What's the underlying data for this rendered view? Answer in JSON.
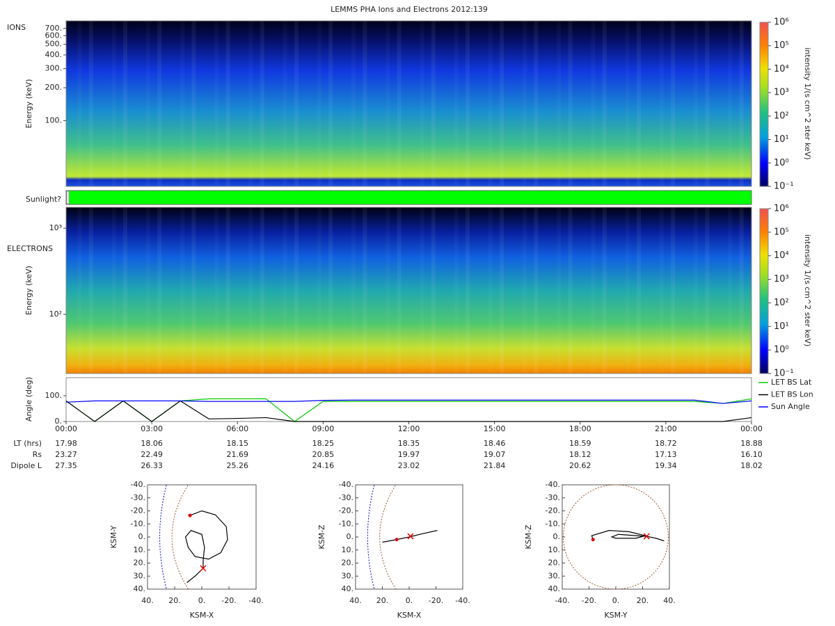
{
  "title": "LEMMS PHA Ions and Electrons  2012:139",
  "chart_data": [
    {
      "type": "heatmap",
      "panel_label": "IONS",
      "ylabel": "Energy (keV)",
      "scale": "log",
      "ylim": [
        25,
        820
      ],
      "yticks": [
        {
          "value": 100,
          "label": "100."
        },
        {
          "value": 200,
          "label": "200."
        },
        {
          "value": 300,
          "label": "300."
        },
        {
          "value": 400,
          "label": "400."
        },
        {
          "value": 500,
          "label": "500."
        },
        {
          "value": 600,
          "label": "600."
        },
        {
          "value": 700,
          "label": "700."
        }
      ],
      "colorbar": {
        "label": "intensity 1/(s cm^2 ster keV)",
        "lim": [
          0.1,
          1000000
        ],
        "ticks": [
          {
            "value": 0.1,
            "label": "10⁻¹"
          },
          {
            "value": 1,
            "label": "10⁰"
          },
          {
            "value": 10,
            "label": "10¹"
          },
          {
            "value": 100,
            "label": "10²"
          },
          {
            "value": 1000,
            "label": "10³"
          },
          {
            "value": 10000,
            "label": "10⁴"
          },
          {
            "value": 100000,
            "label": "10⁵"
          },
          {
            "value": 1000000,
            "label": "10⁶"
          }
        ]
      }
    },
    {
      "type": "status",
      "label": "Sunlight?",
      "color": "#00ff00"
    },
    {
      "type": "heatmap",
      "panel_label": "ELECTRONS",
      "ylabel": "Energy (keV)",
      "scale": "log",
      "ylim": [
        20.6,
        1750
      ],
      "yticks": [
        {
          "value": 100,
          "label": "10²"
        },
        {
          "value": 1000,
          "label": "10³"
        }
      ],
      "colorbar": {
        "label": "intensity 1/(s cm^2 ster keV)",
        "lim": [
          0.1,
          1000000
        ],
        "ticks": [
          {
            "value": 0.1,
            "label": "10⁻¹"
          },
          {
            "value": 1,
            "label": "10⁰"
          },
          {
            "value": 10,
            "label": "10¹"
          },
          {
            "value": 100,
            "label": "10²"
          },
          {
            "value": 1000,
            "label": "10³"
          },
          {
            "value": 10000,
            "label": "10⁴"
          },
          {
            "value": 100000,
            "label": "10⁵"
          },
          {
            "value": 1000000,
            "label": "10⁶"
          }
        ]
      }
    },
    {
      "type": "line",
      "ylabel": "Angle (deg)",
      "ylim": [
        0,
        170
      ],
      "yticks": [
        {
          "value": 0,
          "label": "0."
        },
        {
          "value": 100,
          "label": "100."
        }
      ],
      "xlim": [
        0,
        24
      ],
      "xticks": [
        {
          "value": 0,
          "label": "00:00"
        },
        {
          "value": 3,
          "label": "03:00"
        },
        {
          "value": 6,
          "label": "06:00"
        },
        {
          "value": 9,
          "label": "09:00"
        },
        {
          "value": 12,
          "label": "12:00"
        },
        {
          "value": 15,
          "label": "15:00"
        },
        {
          "value": 18,
          "label": "18:00"
        },
        {
          "value": 21,
          "label": "21:00"
        },
        {
          "value": 24,
          "label": "00:00"
        }
      ],
      "legend": "right",
      "x": [
        0,
        1,
        2,
        3,
        4,
        5,
        6,
        7,
        8,
        9,
        10,
        11,
        12,
        13,
        14,
        15,
        16,
        17,
        18,
        19,
        20,
        21,
        22,
        23,
        24
      ],
      "series": [
        {
          "name": "LET BS Lat",
          "color": "#00c800",
          "values": [
            80,
            0,
            80,
            0,
            80,
            88,
            88,
            88,
            0,
            78,
            78,
            78,
            78,
            78,
            78,
            78,
            78,
            78,
            78,
            78,
            78,
            78,
            78,
            70,
            88
          ]
        },
        {
          "name": "LET BS Lon",
          "color": "#000000",
          "values": [
            80,
            0,
            80,
            0,
            80,
            10,
            12,
            15,
            0,
            0,
            0,
            0,
            0,
            0,
            0,
            0,
            0,
            0,
            0,
            0,
            0,
            0,
            0,
            0,
            15
          ]
        },
        {
          "name": "Sun Angle",
          "color": "#0000ff",
          "values": [
            75,
            80,
            80,
            80,
            80,
            78,
            78,
            78,
            78,
            82,
            83,
            83,
            83,
            83,
            83,
            83,
            83,
            83,
            83,
            83,
            83,
            83,
            83,
            70,
            80
          ]
        }
      ]
    },
    {
      "type": "line",
      "xlabel": "KSM-X",
      "ylabel": "KSM-Y",
      "xlim": [
        40,
        -40
      ],
      "ylim": [
        40,
        -40
      ],
      "xticks": [
        {
          "value": 40,
          "label": "40."
        },
        {
          "value": 20,
          "label": "20."
        },
        {
          "value": 0,
          "label": "0."
        },
        {
          "value": -20,
          "label": "-20."
        },
        {
          "value": -40,
          "label": "-40."
        }
      ],
      "yticks": [
        {
          "value": -40,
          "label": "-40."
        },
        {
          "value": -30,
          "label": "-30."
        },
        {
          "value": -20,
          "label": "-20."
        },
        {
          "value": -10,
          "label": "-10."
        },
        {
          "value": 0,
          "label": "0."
        },
        {
          "value": 10,
          "label": "10."
        },
        {
          "value": 20,
          "label": "20."
        },
        {
          "value": 30,
          "label": "30."
        },
        {
          "value": 40,
          "label": "40."
        }
      ],
      "color": "#000000",
      "x": [
        8.7,
        0,
        -10,
        -18,
        -19,
        -14,
        -5,
        5,
        10,
        12,
        8,
        0,
        -2,
        -1,
        -1,
        5,
        11
      ],
      "y": [
        -16.5,
        -20,
        -17,
        -8,
        2,
        12,
        17,
        15,
        8,
        0,
        -5,
        -2,
        8,
        18,
        24,
        30,
        35
      ],
      "start": {
        "x": 8.7,
        "y": -16.5,
        "color": "#e00000"
      },
      "end": {
        "x": -1,
        "y": 24,
        "color": "#e00000"
      }
    },
    {
      "type": "line",
      "xlabel": "KSM-X",
      "ylabel": "KSM-Z",
      "xlim": [
        40,
        -40
      ],
      "ylim": [
        40,
        -40
      ],
      "xticks": [
        {
          "value": 40,
          "label": "40."
        },
        {
          "value": 20,
          "label": "20."
        },
        {
          "value": 0,
          "label": "0."
        },
        {
          "value": -20,
          "label": "-20."
        },
        {
          "value": -40,
          "label": "-40."
        }
      ],
      "yticks": [
        {
          "value": -40,
          "label": "-40."
        },
        {
          "value": -30,
          "label": "-30."
        },
        {
          "value": -20,
          "label": "-20."
        },
        {
          "value": -10,
          "label": "-10."
        },
        {
          "value": 0,
          "label": "0."
        },
        {
          "value": 10,
          "label": "10."
        },
        {
          "value": 20,
          "label": "20."
        },
        {
          "value": 30,
          "label": "30."
        },
        {
          "value": 40,
          "label": "40."
        }
      ],
      "color": "#000000",
      "x": [
        20,
        9.3,
        0,
        -10,
        -21
      ],
      "y": [
        4,
        2,
        0,
        -2.5,
        -5
      ],
      "start": {
        "x": 9.3,
        "y": 2,
        "color": "#e00000"
      },
      "end": {
        "x": -1,
        "y": -0.5,
        "color": "#e00000"
      }
    },
    {
      "type": "line",
      "xlabel": "KSM-Y",
      "ylabel": "KSM-Z",
      "xlim": [
        -40,
        40
      ],
      "ylim": [
        40,
        -40
      ],
      "xticks": [
        {
          "value": -40,
          "label": "-40."
        },
        {
          "value": -20,
          "label": "-20."
        },
        {
          "value": 0,
          "label": "0."
        },
        {
          "value": 20,
          "label": "20."
        },
        {
          "value": 40,
          "label": "40."
        }
      ],
      "yticks": [
        {
          "value": -40,
          "label": "-40."
        },
        {
          "value": -30,
          "label": "-30."
        },
        {
          "value": -20,
          "label": "-20."
        },
        {
          "value": -10,
          "label": "-10."
        },
        {
          "value": 0,
          "label": "0."
        },
        {
          "value": 10,
          "label": "10."
        },
        {
          "value": 20,
          "label": "20."
        },
        {
          "value": 30,
          "label": "30."
        },
        {
          "value": 40,
          "label": "40."
        }
      ],
      "color": "#000000",
      "x": [
        -17,
        -18,
        -5,
        10,
        22,
        15,
        0,
        -3,
        2,
        15,
        23,
        30,
        36
      ],
      "y": [
        2,
        -1,
        -5,
        -4,
        -1,
        1,
        1,
        0,
        -2,
        -1,
        -0.5,
        1,
        3
      ],
      "start": {
        "x": -17,
        "y": 2,
        "color": "#e00000"
      },
      "end": {
        "x": 23,
        "y": -0.5,
        "color": "#e00000"
      }
    }
  ],
  "table": {
    "rows": [
      {
        "label": "LT (hrs)",
        "values": [
          "17.98",
          "18.06",
          "18.15",
          "18.25",
          "18.35",
          "18.46",
          "18.59",
          "18.72",
          "18.88"
        ]
      },
      {
        "label": "Rs",
        "values": [
          "23.27",
          "22.49",
          "21.69",
          "20.85",
          "19.97",
          "19.07",
          "18.12",
          "17.13",
          "16.10"
        ]
      },
      {
        "label": "Dipole L",
        "values": [
          "27.35",
          "26.33",
          "25.26",
          "24.16",
          "23.02",
          "21.84",
          "20.62",
          "19.34",
          "18.02"
        ]
      }
    ]
  }
}
